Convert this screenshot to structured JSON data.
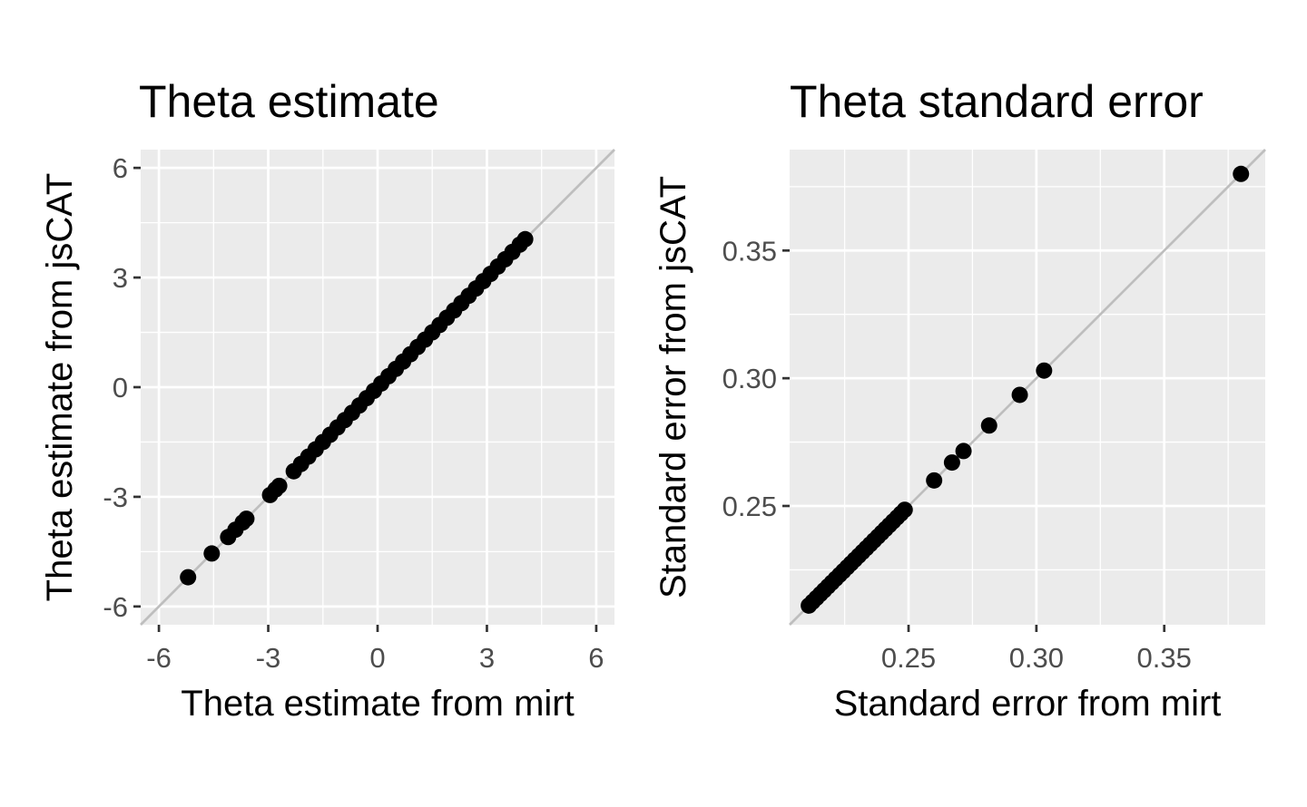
{
  "chart_data": [
    {
      "type": "scatter",
      "title": "Theta estimate",
      "xlabel": "Theta estimate from mirt",
      "ylabel": "Theta estimate from jsCAT",
      "xlim": [
        -6.5,
        6.5
      ],
      "ylim": [
        -6.5,
        6.5
      ],
      "xticks": [
        -6,
        -3,
        0,
        3,
        6
      ],
      "yticks": [
        -6,
        -3,
        0,
        3,
        6
      ],
      "xtick_labels": [
        "-6",
        "-3",
        "0",
        "3",
        "6"
      ],
      "ytick_labels": [
        "-6",
        "-3",
        "0",
        "3",
        "6"
      ],
      "minor_grid": [
        -4.5,
        -1.5,
        1.5,
        4.5
      ],
      "grid": true,
      "reference_line": {
        "type": "identity",
        "color": "#bebebe"
      },
      "series": [
        {
          "name": "theta",
          "color": "#000000",
          "x": [
            -5.2,
            -4.55,
            -4.1,
            -3.9,
            -3.7,
            -3.6,
            -2.95,
            -2.8,
            -2.7,
            -2.3,
            -2.1,
            -1.9,
            -1.7,
            -1.5,
            -1.3,
            -1.1,
            -0.9,
            -0.7,
            -0.5,
            -0.3,
            -0.1,
            0.1,
            0.3,
            0.5,
            0.7,
            0.9,
            1.1,
            1.3,
            1.5,
            1.7,
            1.9,
            2.1,
            2.3,
            2.5,
            2.7,
            2.9,
            3.1,
            3.3,
            3.5,
            3.7,
            3.9,
            4.05
          ],
          "y": [
            -5.2,
            -4.55,
            -4.1,
            -3.9,
            -3.7,
            -3.6,
            -2.95,
            -2.8,
            -2.7,
            -2.3,
            -2.1,
            -1.9,
            -1.7,
            -1.5,
            -1.3,
            -1.1,
            -0.9,
            -0.7,
            -0.5,
            -0.3,
            -0.1,
            0.1,
            0.3,
            0.5,
            0.7,
            0.9,
            1.1,
            1.3,
            1.5,
            1.7,
            1.9,
            2.1,
            2.3,
            2.5,
            2.7,
            2.9,
            3.1,
            3.3,
            3.5,
            3.7,
            3.9,
            4.05
          ]
        }
      ]
    },
    {
      "type": "scatter",
      "title": "Theta standard error",
      "xlabel": "Standard error from mirt",
      "ylabel": "Standard error from jsCAT",
      "xlim": [
        0.2035,
        0.3895
      ],
      "ylim": [
        0.2035,
        0.3895
      ],
      "xticks": [
        0.25,
        0.3,
        0.35
      ],
      "yticks": [
        0.25,
        0.3,
        0.35
      ],
      "xtick_labels": [
        "0.25",
        "0.30",
        "0.35"
      ],
      "ytick_labels": [
        "0.25",
        "0.30",
        "0.35"
      ],
      "minor_grid": [
        0.225,
        0.275,
        0.325,
        0.375
      ],
      "grid": true,
      "reference_line": {
        "type": "identity",
        "color": "#bebebe"
      },
      "series": [
        {
          "name": "standard error",
          "color": "#000000",
          "x": [
            0.211,
            0.2125,
            0.214,
            0.2155,
            0.217,
            0.2185,
            0.22,
            0.2215,
            0.223,
            0.2245,
            0.226,
            0.2275,
            0.229,
            0.2305,
            0.232,
            0.2335,
            0.235,
            0.2365,
            0.238,
            0.2395,
            0.241,
            0.2425,
            0.244,
            0.2455,
            0.247,
            0.2485,
            0.26,
            0.267,
            0.2715,
            0.2815,
            0.2935,
            0.303,
            0.38
          ],
          "y": [
            0.211,
            0.2125,
            0.214,
            0.2155,
            0.217,
            0.2185,
            0.22,
            0.2215,
            0.223,
            0.2245,
            0.226,
            0.2275,
            0.229,
            0.2305,
            0.232,
            0.2335,
            0.235,
            0.2365,
            0.238,
            0.2395,
            0.241,
            0.2425,
            0.244,
            0.2455,
            0.247,
            0.2485,
            0.26,
            0.267,
            0.2715,
            0.2815,
            0.2935,
            0.303,
            0.38
          ]
        }
      ]
    }
  ]
}
